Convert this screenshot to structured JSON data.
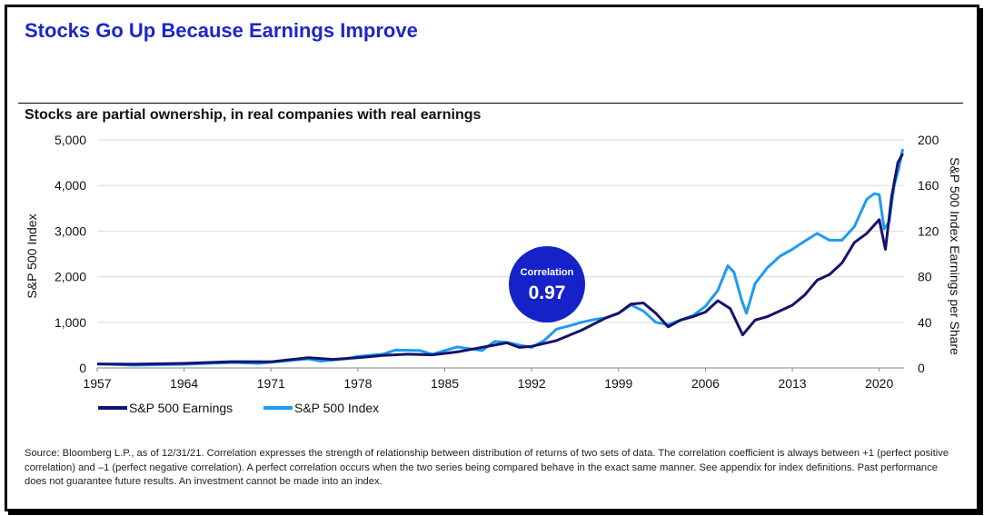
{
  "header": {
    "title": "Stocks Go Up Because Earnings Improve",
    "subtitle": "Stocks are partial ownership, in real companies with real earnings"
  },
  "callout": {
    "label": "Correlation",
    "value": "0.97"
  },
  "source_note": "Source: Bloomberg L.P., as of 12/31/21. Correlation expresses the strength of relationship between distribution of returns of two sets of data. The correlation coefficient is always between +1 (perfect positive correlation) and –1 (perfect negative correlation). A perfect correlation occurs when the two series being compared behave in the exact same manner. See appendix for index definitions. Past performance does not guarantee future results. An investment cannot be made into an index.",
  "colors": {
    "title": "#1b27c9",
    "earnings": "#14146e",
    "index": "#1e9bf0",
    "callout": "#1522c8"
  },
  "chart_data": {
    "type": "line",
    "ylabel": "S&P 500 Index",
    "y2label": "S&P 500 Index Earnings per Share",
    "xlim": [
      1957,
      2022
    ],
    "ylim": [
      0,
      5000
    ],
    "y2lim": [
      0,
      200
    ],
    "x_ticks": [
      "1957",
      "1964",
      "1971",
      "1978",
      "1985",
      "1992",
      "1999",
      "2006",
      "2013",
      "2020"
    ],
    "y_ticks": [
      "0",
      "1,000",
      "2,000",
      "3,000",
      "4,000",
      "5,000"
    ],
    "y2_ticks": [
      "0",
      "40",
      "80",
      "120",
      "160",
      "200"
    ],
    "grid": true,
    "legend_position": "bottom-left",
    "series": [
      {
        "name": "S&P 500 Earnings",
        "axis": "right",
        "color": "#14146e",
        "points": [
          [
            1957,
            3.4
          ],
          [
            1960,
            3.3
          ],
          [
            1964,
            4
          ],
          [
            1968,
            5.5
          ],
          [
            1971,
            5.3
          ],
          [
            1974,
            9
          ],
          [
            1976,
            7.5
          ],
          [
            1978,
            9
          ],
          [
            1980,
            11
          ],
          [
            1982,
            12
          ],
          [
            1984,
            11.5
          ],
          [
            1986,
            14
          ],
          [
            1988,
            18
          ],
          [
            1990,
            22
          ],
          [
            1991,
            18
          ],
          [
            1992,
            19
          ],
          [
            1994,
            24
          ],
          [
            1996,
            33
          ],
          [
            1998,
            44
          ],
          [
            1999,
            48
          ],
          [
            2000,
            56
          ],
          [
            2001,
            57
          ],
          [
            2002,
            48
          ],
          [
            2003,
            36
          ],
          [
            2004,
            42
          ],
          [
            2005,
            45
          ],
          [
            2006,
            49
          ],
          [
            2007,
            59
          ],
          [
            2008,
            52
          ],
          [
            2009,
            29
          ],
          [
            2010,
            42
          ],
          [
            2011,
            45
          ],
          [
            2012,
            50
          ],
          [
            2013,
            55
          ],
          [
            2014,
            64
          ],
          [
            2015,
            77
          ],
          [
            2016,
            82
          ],
          [
            2017,
            92
          ],
          [
            2018,
            110
          ],
          [
            2019,
            118
          ],
          [
            2020,
            130
          ],
          [
            2020.5,
            104
          ],
          [
            2021,
            150
          ],
          [
            2021.5,
            180
          ],
          [
            2021.9,
            188
          ]
        ]
      },
      {
        "name": "S&P 500 Index",
        "axis": "left",
        "color": "#1e9bf0",
        "points": [
          [
            1957,
            90
          ],
          [
            1960,
            60
          ],
          [
            1962,
            70
          ],
          [
            1964,
            80
          ],
          [
            1966,
            100
          ],
          [
            1968,
            120
          ],
          [
            1970,
            100
          ],
          [
            1972,
            150
          ],
          [
            1974,
            200
          ],
          [
            1975,
            150
          ],
          [
            1977,
            200
          ],
          [
            1978,
            250
          ],
          [
            1980,
            300
          ],
          [
            1981,
            390
          ],
          [
            1983,
            380
          ],
          [
            1984,
            300
          ],
          [
            1986,
            460
          ],
          [
            1987,
            420
          ],
          [
            1988,
            380
          ],
          [
            1989,
            580
          ],
          [
            1990,
            560
          ],
          [
            1991,
            500
          ],
          [
            1992,
            450
          ],
          [
            1993,
            600
          ],
          [
            1994,
            850
          ],
          [
            1995,
            920
          ],
          [
            1996,
            1000
          ],
          [
            1997,
            1060
          ],
          [
            1998,
            1100
          ],
          [
            1999,
            1200
          ],
          [
            2000,
            1380
          ],
          [
            2001,
            1250
          ],
          [
            2002,
            1000
          ],
          [
            2003,
            950
          ],
          [
            2004,
            1050
          ],
          [
            2005,
            1150
          ],
          [
            2006,
            1350
          ],
          [
            2007,
            1700
          ],
          [
            2007.8,
            2240
          ],
          [
            2008.3,
            2100
          ],
          [
            2008.9,
            1500
          ],
          [
            2009.3,
            1200
          ],
          [
            2010,
            1850
          ],
          [
            2011,
            2200
          ],
          [
            2012,
            2450
          ],
          [
            2013,
            2600
          ],
          [
            2014,
            2780
          ],
          [
            2015,
            2950
          ],
          [
            2016,
            2800
          ],
          [
            2017,
            2800
          ],
          [
            2018,
            3100
          ],
          [
            2019,
            3700
          ],
          [
            2019.6,
            3820
          ],
          [
            2020,
            3800
          ],
          [
            2020.4,
            3050
          ],
          [
            2020.8,
            3200
          ],
          [
            2021.2,
            4000
          ],
          [
            2021.6,
            4400
          ],
          [
            2021.9,
            4800
          ]
        ]
      }
    ]
  }
}
